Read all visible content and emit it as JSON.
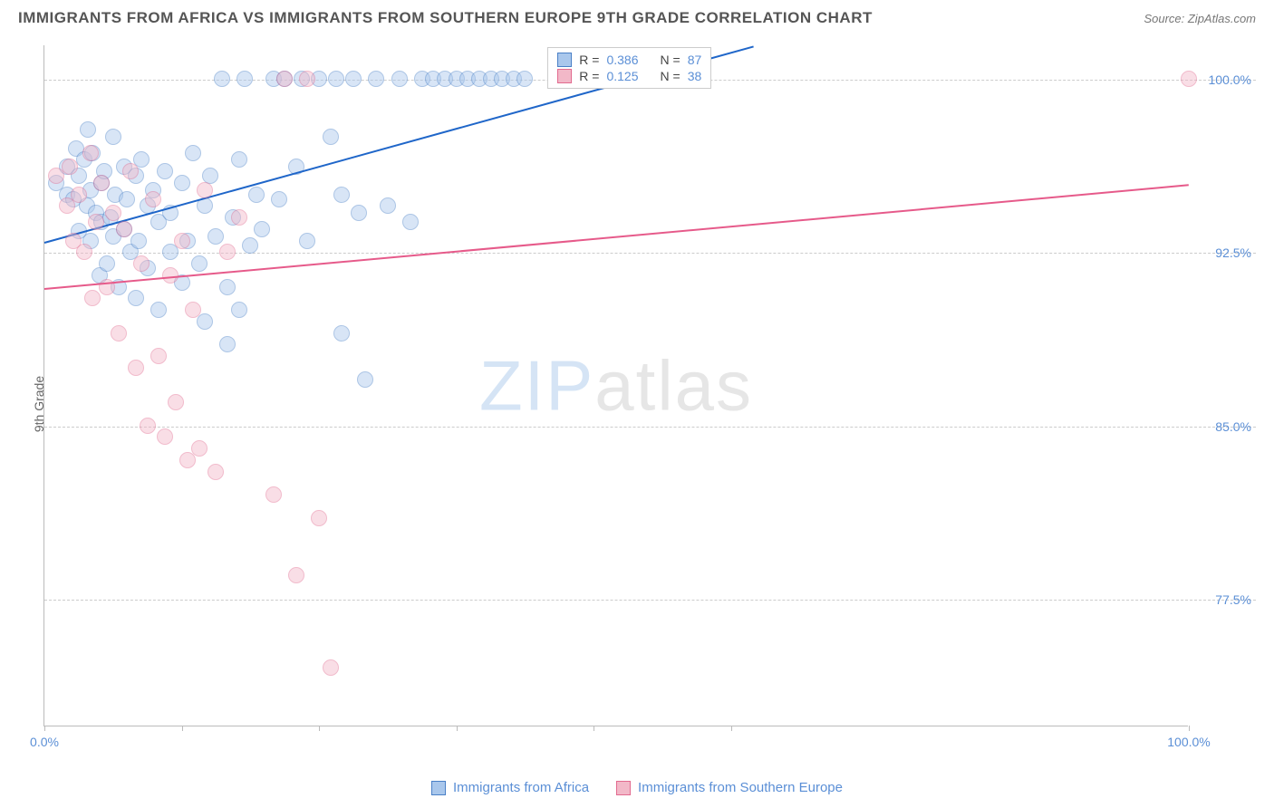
{
  "header": {
    "title": "IMMIGRANTS FROM AFRICA VS IMMIGRANTS FROM SOUTHERN EUROPE 9TH GRADE CORRELATION CHART",
    "source": "Source: ZipAtlas.com"
  },
  "chart": {
    "type": "scatter",
    "y_axis_label": "9th Grade",
    "xlim": [
      0,
      100
    ],
    "ylim": [
      72,
      101.5
    ],
    "x_ticks": [
      0,
      12,
      24,
      36,
      48,
      60,
      100
    ],
    "x_tick_labels": {
      "0": "0.0%",
      "100": "100.0%"
    },
    "y_gridlines": [
      77.5,
      85.0,
      92.5,
      100.0
    ],
    "y_tick_labels": [
      "77.5%",
      "85.0%",
      "92.5%",
      "100.0%"
    ],
    "background_color": "#ffffff",
    "grid_color": "#cccccc",
    "axis_color": "#bbbbbb",
    "text_color": "#5b8fd6",
    "marker_radius": 9,
    "marker_opacity": 0.45,
    "series": [
      {
        "name": "Immigrants from Africa",
        "color_fill": "#a9c7ec",
        "color_stroke": "#4a80c7",
        "trend_color": "#1f66c9",
        "R": "0.386",
        "N": "87",
        "trendline": {
          "x1": 0,
          "y1": 93.0,
          "x2": 62,
          "y2": 101.5
        },
        "points": [
          [
            1,
            95.5
          ],
          [
            2,
            95.0
          ],
          [
            2,
            96.2
          ],
          [
            2.5,
            94.8
          ],
          [
            2.8,
            97.0
          ],
          [
            3,
            93.4
          ],
          [
            3,
            95.8
          ],
          [
            3.5,
            96.5
          ],
          [
            3.7,
            94.5
          ],
          [
            3.8,
            97.8
          ],
          [
            4,
            93.0
          ],
          [
            4,
            95.2
          ],
          [
            4.2,
            96.8
          ],
          [
            4.5,
            94.2
          ],
          [
            4.8,
            91.5
          ],
          [
            5,
            95.5
          ],
          [
            5,
            93.8
          ],
          [
            5.2,
            96.0
          ],
          [
            5.5,
            92.0
          ],
          [
            5.8,
            94.0
          ],
          [
            6,
            97.5
          ],
          [
            6,
            93.2
          ],
          [
            6.2,
            95.0
          ],
          [
            6.5,
            91.0
          ],
          [
            7,
            96.2
          ],
          [
            7,
            93.5
          ],
          [
            7.2,
            94.8
          ],
          [
            7.5,
            92.5
          ],
          [
            8,
            95.8
          ],
          [
            8,
            90.5
          ],
          [
            8.2,
            93.0
          ],
          [
            8.5,
            96.5
          ],
          [
            9,
            94.5
          ],
          [
            9,
            91.8
          ],
          [
            9.5,
            95.2
          ],
          [
            10,
            93.8
          ],
          [
            10,
            90.0
          ],
          [
            10.5,
            96.0
          ],
          [
            11,
            92.5
          ],
          [
            11,
            94.2
          ],
          [
            12,
            95.5
          ],
          [
            12,
            91.2
          ],
          [
            12.5,
            93.0
          ],
          [
            13,
            96.8
          ],
          [
            13.5,
            92.0
          ],
          [
            14,
            94.5
          ],
          [
            14,
            89.5
          ],
          [
            14.5,
            95.8
          ],
          [
            15,
            93.2
          ],
          [
            15.5,
            100.0
          ],
          [
            16,
            91.0
          ],
          [
            16.5,
            94.0
          ],
          [
            17,
            96.5
          ],
          [
            17.5,
            100.0
          ],
          [
            18,
            92.8
          ],
          [
            18.5,
            95.0
          ],
          [
            19,
            93.5
          ],
          [
            20,
            100.0
          ],
          [
            20.5,
            94.8
          ],
          [
            21,
            100.0
          ],
          [
            22,
            96.2
          ],
          [
            22.5,
            100.0
          ],
          [
            23,
            93.0
          ],
          [
            24,
            100.0
          ],
          [
            25,
            97.5
          ],
          [
            25.5,
            100.0
          ],
          [
            26,
            95.0
          ],
          [
            27,
            100.0
          ],
          [
            27.5,
            94.2
          ],
          [
            28,
            87.0
          ],
          [
            29,
            100.0
          ],
          [
            30,
            94.5
          ],
          [
            31,
            100.0
          ],
          [
            32,
            93.8
          ],
          [
            33,
            100.0
          ],
          [
            34,
            100.0
          ],
          [
            35,
            100.0
          ],
          [
            36,
            100.0
          ],
          [
            37,
            100.0
          ],
          [
            38,
            100.0
          ],
          [
            39,
            100.0
          ],
          [
            40,
            100.0
          ],
          [
            41,
            100.0
          ],
          [
            42,
            100.0
          ],
          [
            26,
            89.0
          ],
          [
            16,
            88.5
          ],
          [
            17,
            90.0
          ]
        ]
      },
      {
        "name": "Immigrants from Southern Europe",
        "color_fill": "#f2b8c8",
        "color_stroke": "#e26a8f",
        "trend_color": "#e65a8a",
        "R": "0.125",
        "N": "38",
        "trendline": {
          "x1": 0,
          "y1": 91.0,
          "x2": 100,
          "y2": 95.5
        },
        "points": [
          [
            1,
            95.8
          ],
          [
            2,
            94.5
          ],
          [
            2.2,
            96.2
          ],
          [
            2.5,
            93.0
          ],
          [
            3,
            95.0
          ],
          [
            3.5,
            92.5
          ],
          [
            4,
            96.8
          ],
          [
            4.2,
            90.5
          ],
          [
            4.5,
            93.8
          ],
          [
            5,
            95.5
          ],
          [
            5.5,
            91.0
          ],
          [
            6,
            94.2
          ],
          [
            6.5,
            89.0
          ],
          [
            7,
            93.5
          ],
          [
            7.5,
            96.0
          ],
          [
            8,
            87.5
          ],
          [
            8.5,
            92.0
          ],
          [
            9,
            85.0
          ],
          [
            9.5,
            94.8
          ],
          [
            10,
            88.0
          ],
          [
            10.5,
            84.5
          ],
          [
            11,
            91.5
          ],
          [
            11.5,
            86.0
          ],
          [
            12,
            93.0
          ],
          [
            12.5,
            83.5
          ],
          [
            13,
            90.0
          ],
          [
            13.5,
            84.0
          ],
          [
            14,
            95.2
          ],
          [
            15,
            83.0
          ],
          [
            16,
            92.5
          ],
          [
            17,
            94.0
          ],
          [
            20,
            82.0
          ],
          [
            21,
            100.0
          ],
          [
            22,
            78.5
          ],
          [
            23,
            100.0
          ],
          [
            24,
            81.0
          ],
          [
            25,
            74.5
          ],
          [
            100,
            100.0
          ]
        ]
      }
    ],
    "stats_box": {
      "rows": [
        {
          "swatch_fill": "#a9c7ec",
          "swatch_stroke": "#4a80c7",
          "r_label": "R =",
          "r_value": "0.386",
          "n_label": "N =",
          "n_value": "87"
        },
        {
          "swatch_fill": "#f2b8c8",
          "swatch_stroke": "#e26a8f",
          "r_label": "R =",
          "r_value": " 0.125",
          "n_label": "N =",
          "n_value": "38"
        }
      ]
    },
    "bottom_legend": [
      {
        "swatch_fill": "#a9c7ec",
        "swatch_stroke": "#4a80c7",
        "label": "Immigrants from Africa"
      },
      {
        "swatch_fill": "#f2b8c8",
        "swatch_stroke": "#e26a8f",
        "label": "Immigrants from Southern Europe"
      }
    ],
    "watermark": {
      "part1": "ZIP",
      "part2": "atlas"
    }
  }
}
